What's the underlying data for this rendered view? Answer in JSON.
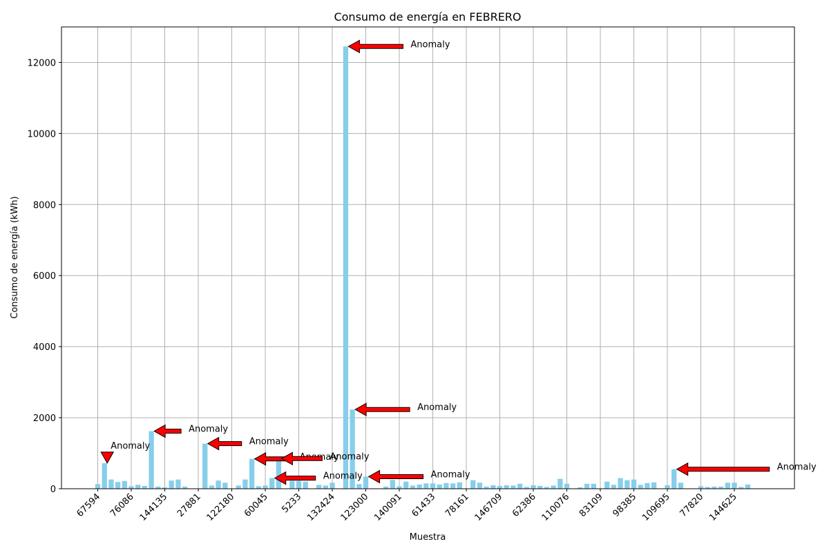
{
  "chart_data": {
    "type": "bar",
    "title": "Consumo de energía en FEBRERO",
    "xlabel": "Muestra",
    "ylabel": "Consumo de energía (kWh)",
    "ylim": [
      0,
      13000
    ],
    "yticks": [
      0,
      2000,
      4000,
      6000,
      8000,
      10000,
      12000
    ],
    "grid": true,
    "bar_color": "#87ceeb",
    "arrow_color": "#ff0000",
    "annotation_label": "Anomaly",
    "xtick_labels": [
      "67594",
      "76086",
      "144135",
      "27881",
      "122180",
      "60045",
      "5233",
      "132424",
      "123000",
      "140091",
      "61433",
      "78161",
      "146709",
      "62386",
      "110076",
      "83109",
      "98385",
      "109695",
      "77820",
      "144625"
    ],
    "values": [
      130,
      720,
      260,
      190,
      220,
      70,
      110,
      80,
      1620,
      60,
      40,
      230,
      260,
      60,
      0,
      0,
      1270,
      90,
      230,
      170,
      0,
      90,
      260,
      840,
      70,
      90,
      300,
      850,
      0,
      220,
      220,
      200,
      0,
      110,
      90,
      170,
      0,
      12450,
      2230,
      130,
      340,
      0,
      0,
      60,
      250,
      70,
      200,
      90,
      120,
      150,
      150,
      120,
      160,
      150,
      180,
      0,
      240,
      170,
      60,
      100,
      80,
      100,
      90,
      140,
      50,
      100,
      80,
      50,
      90,
      280,
      140,
      0,
      40,
      140,
      140,
      0,
      200,
      110,
      300,
      240,
      260,
      110,
      160,
      180,
      0,
      100,
      550,
      170,
      0,
      0,
      70,
      50,
      60,
      60,
      170,
      170,
      50,
      120
    ],
    "anomalies": [
      {
        "index": 1,
        "label": "Anomaly"
      },
      {
        "index": 8,
        "label": "Anomaly"
      },
      {
        "index": 16,
        "label": "Anomaly"
      },
      {
        "index": 23,
        "label": "Anomaly"
      },
      {
        "index": 26,
        "label": "Anomaly"
      },
      {
        "index": 27,
        "label": "Anomaly"
      },
      {
        "index": 37,
        "label": "Anomaly"
      },
      {
        "index": 38,
        "label": "Anomaly"
      },
      {
        "index": 40,
        "label": "Anomaly"
      },
      {
        "index": 86,
        "label": "Anomaly"
      }
    ]
  }
}
